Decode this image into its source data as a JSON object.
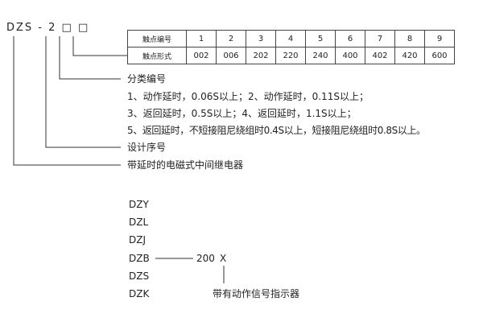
{
  "model_code": "DZS - 2 □ □",
  "table": {
    "row_headers": [
      "触点编号",
      "触点形式"
    ],
    "numbers": [
      "1",
      "2",
      "3",
      "4",
      "5",
      "6",
      "7",
      "8",
      "9"
    ],
    "forms": [
      "002",
      "006",
      "202",
      "220",
      "240",
      "400",
      "402",
      "420",
      "600"
    ]
  },
  "labels": {
    "classification": "分类编号",
    "class_lines": [
      "1、动作延时，0.06S以上；2、动作延时，0.11S以上；",
      "3、返回延时，0.5S以上；4、返回延时，1.1S以上；",
      "5、返回延时，不短接阻尼绕组时0.4S以上，短接阻尼绕组时0.8S以上。"
    ],
    "design_serial": "设计序号",
    "relay_type": "带延时的电磁式中间继电器"
  },
  "series": [
    "DZY",
    "DZL",
    "DZJ",
    "DZB",
    "DZS",
    "DZK"
  ],
  "suffix": {
    "code": "200",
    "mark": "X",
    "note": "带有动作信号指示器"
  }
}
